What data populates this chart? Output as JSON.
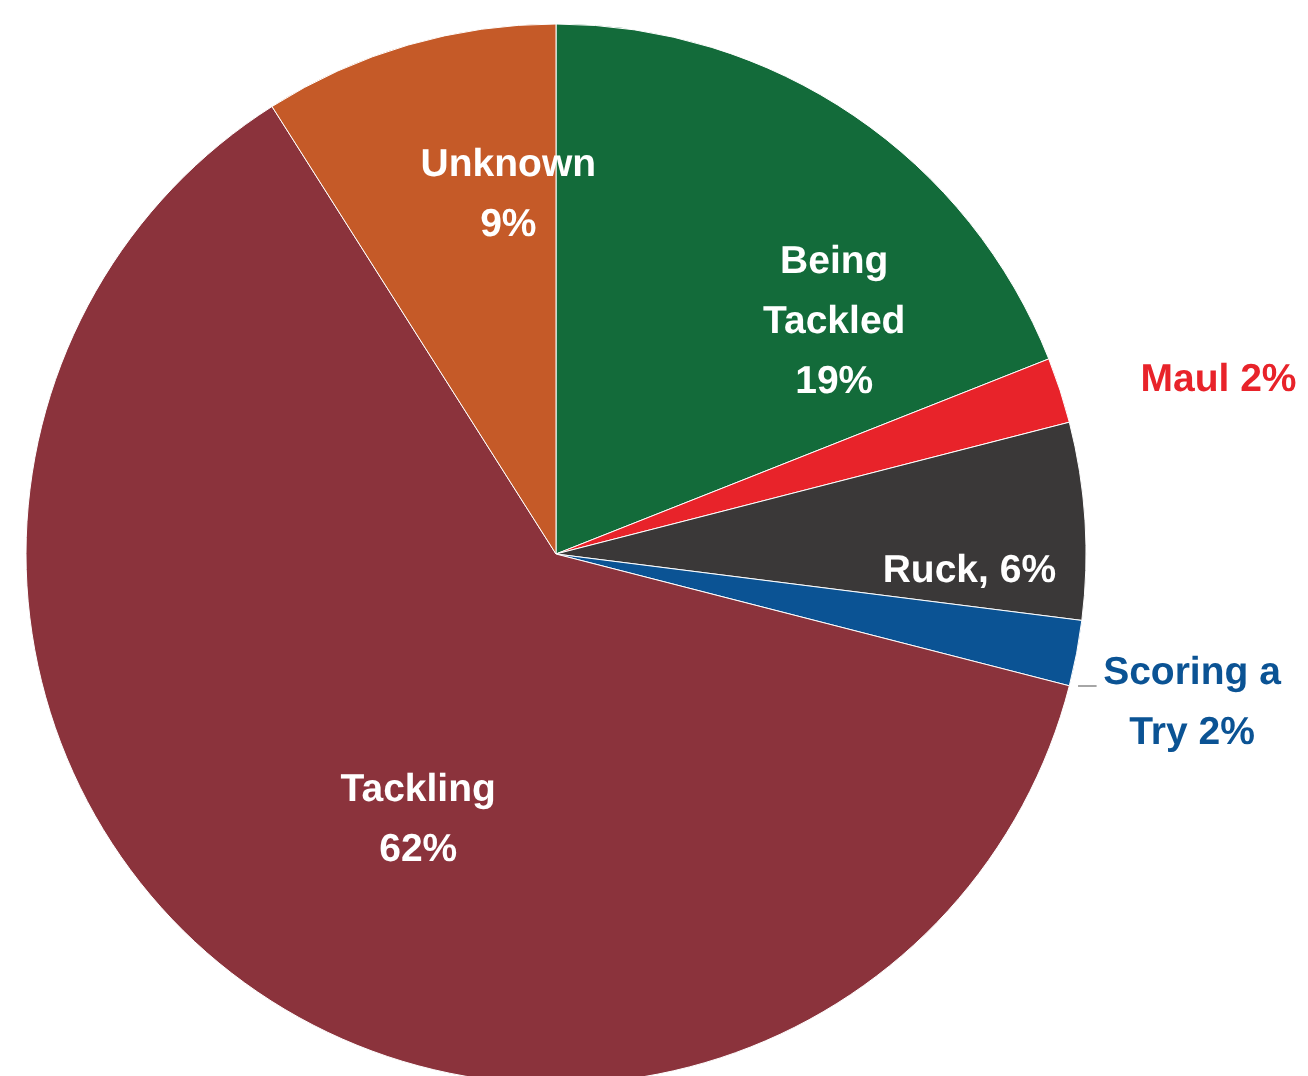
{
  "chart_data": {
    "type": "pie",
    "categories": [
      "Being Tackled",
      "Maul",
      "Ruck",
      "Scoring a Try",
      "Tackling",
      "Unknown"
    ],
    "values": [
      19,
      2,
      6,
      2,
      62,
      9
    ],
    "value_labels": [
      "19%",
      "2%",
      "6%",
      "2%",
      "62%",
      "9%"
    ],
    "colors": [
      "#136b3a",
      "#e8232a",
      "#3a3838",
      "#0b5394",
      "#8b333c",
      "#c55a28"
    ]
  }
}
